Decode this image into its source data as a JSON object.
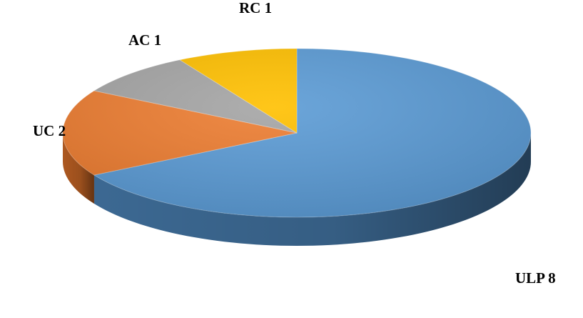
{
  "chart_data": {
    "type": "pie",
    "style": "3d",
    "title": "",
    "start_angle": "12 o'clock, clockwise",
    "slices": [
      {
        "label": "ULP",
        "value": 8,
        "color": "#5b9bd5",
        "side_color": "#3f6e9a",
        "text": "ULP 8"
      },
      {
        "label": "UC",
        "value": 2,
        "color": "#ed7d31",
        "side_color": "#b65d22",
        "text": "UC 2"
      },
      {
        "label": "AC",
        "value": 1,
        "color": "#a5a5a5",
        "side_color": "#7b7b7b",
        "text": "AC 1"
      },
      {
        "label": "RC",
        "value": 1,
        "color": "#ffc000",
        "side_color": "#c49200",
        "text": "RC 1"
      }
    ]
  }
}
